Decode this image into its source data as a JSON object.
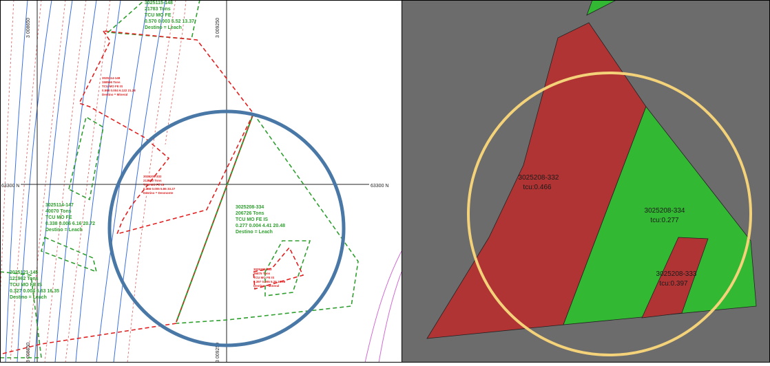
{
  "left_panel": {
    "grid_labels": {
      "easting_top_left": "3 008650",
      "easting_top_right": "3 009250",
      "easting_bottom_left": "3 008650",
      "easting_bottom_right": "3 009250",
      "northing_left": "63300 N",
      "northing_right": "63300 N"
    },
    "blocks": [
      {
        "lines": [
          "3025115-148",
          "21783      Tons",
          "TCU      MO       FE",
          "0.570  0.003   5.52  13.37",
          "Destino = Leach"
        ]
      },
      {
        "lines": [
          "3025114-148",
          "158556       Tons",
          "TCU    MO   FE    IS",
          "0.598  0.004   6.122  21.28",
          "Destino = Mineral"
        ]
      },
      {
        "lines": [
          "3025208-332",
          "213550       Tons",
          "TCU     MO     FE     IS",
          "0.466  0.005   5.86  33.27",
          "Destino = Desmonte"
        ]
      },
      {
        "lines": [
          "3025114-147",
          "40070      Tons",
          "TCU      MO       FE",
          "0.338  0.006   6.16  20.72",
          "Destino = Leach"
        ]
      },
      {
        "lines": [
          "3025208-334",
          "206726      Tons",
          "TCU      MO       FE       IS",
          "0.277  0.004   4.41  20.48",
          "Destino = Leach"
        ]
      },
      {
        "lines": [
          "3025208-333",
          "26875        Tons",
          "TCU   MO    FE    IS",
          "0.397  0.005   5.26  16.98",
          "Destino = Mineral"
        ]
      },
      {
        "lines": [
          "3025121-145",
          "121962      Tons",
          "TCU      MO       FE       IS",
          "0.327  0.004   6.63  16.35",
          "Destino = Leach"
        ]
      }
    ]
  },
  "right_panel": {
    "polygons": [
      {
        "label": "3025208-332",
        "tcu": "tcu:0.466",
        "color": "#b03434"
      },
      {
        "label": "3025208-334",
        "tcu": "tcu:0.277",
        "color": "#33b833"
      },
      {
        "label": "3025208-333",
        "tcu": "tcu:0.397",
        "color": "#b03434"
      }
    ],
    "background": "#6c6c6c"
  },
  "colors": {
    "highlight_circle_left": "#4a78a6",
    "highlight_circle_right": "#f4d27a",
    "green_polygon": "#2e9e2e",
    "red_polygon": "#e02020",
    "contour_blue": "#3a6fe0",
    "contour_red": "#e05a5a",
    "contour_magenta": "#d26ad2"
  }
}
